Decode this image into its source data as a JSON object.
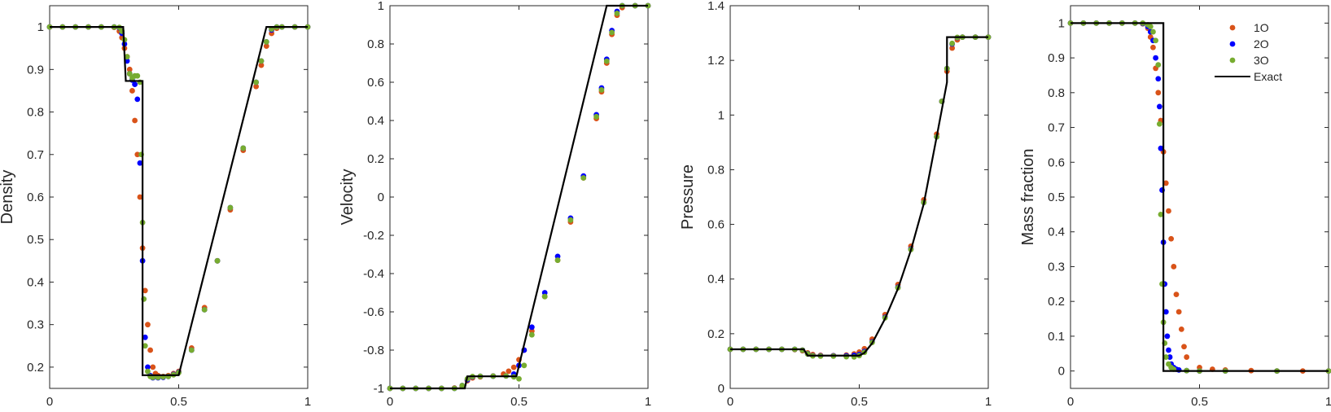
{
  "colors": {
    "o1": "#D95319",
    "o2": "#0000FF",
    "o3": "#77AC30",
    "exact": "#000000",
    "axis": "#262626"
  },
  "legend": {
    "entries": [
      "1O",
      "2O",
      "3O",
      "Exact"
    ],
    "placement": "top-right of fourth panel"
  },
  "chart_data": [
    {
      "type": "scatter",
      "title": "",
      "xlabel": "",
      "ylabel": "Density",
      "xlim": [
        0,
        1
      ],
      "ylim": [
        0.15,
        1.05
      ],
      "xticks": [
        "0",
        "0.5",
        "1"
      ],
      "yticks": [
        "0.2",
        "0.3",
        "0.4",
        "0.5",
        "0.6",
        "0.7",
        "0.8",
        "0.9",
        "1"
      ],
      "series": [
        {
          "name": "1O",
          "x": [
            0,
            0.05,
            0.1,
            0.15,
            0.2,
            0.25,
            0.27,
            0.28,
            0.29,
            0.3,
            0.31,
            0.32,
            0.33,
            0.34,
            0.35,
            0.36,
            0.37,
            0.38,
            0.39,
            0.4,
            0.41,
            0.42,
            0.44,
            0.46,
            0.48,
            0.5,
            0.55,
            0.6,
            0.65,
            0.7,
            0.75,
            0.8,
            0.82,
            0.84,
            0.86,
            0.88,
            0.9,
            0.95,
            1.0
          ],
          "y": [
            1,
            1,
            1,
            1,
            1,
            0.999,
            0.99,
            0.975,
            0.95,
            0.93,
            0.9,
            0.85,
            0.78,
            0.7,
            0.6,
            0.48,
            0.38,
            0.3,
            0.24,
            0.2,
            0.185,
            0.18,
            0.178,
            0.18,
            0.185,
            0.19,
            0.245,
            0.34,
            0.45,
            0.57,
            0.71,
            0.86,
            0.91,
            0.955,
            0.985,
            0.997,
            1,
            1,
            1
          ]
        },
        {
          "name": "2O",
          "x": [
            0,
            0.05,
            0.1,
            0.15,
            0.2,
            0.25,
            0.27,
            0.28,
            0.29,
            0.3,
            0.31,
            0.32,
            0.33,
            0.34,
            0.35,
            0.36,
            0.37,
            0.38,
            0.39,
            0.4,
            0.42,
            0.44,
            0.46,
            0.48,
            0.5,
            0.55,
            0.6,
            0.65,
            0.7,
            0.75,
            0.8,
            0.82,
            0.84,
            0.86,
            0.88,
            0.9,
            0.95,
            1.0
          ],
          "y": [
            1,
            1,
            1,
            1,
            1,
            1,
            0.998,
            0.985,
            0.96,
            0.92,
            0.89,
            0.875,
            0.865,
            0.83,
            0.68,
            0.45,
            0.27,
            0.2,
            0.18,
            0.175,
            0.175,
            0.176,
            0.178,
            0.183,
            0.188,
            0.24,
            0.335,
            0.45,
            0.575,
            0.715,
            0.87,
            0.92,
            0.965,
            0.993,
            1,
            1,
            1,
            1
          ]
        },
        {
          "name": "3O",
          "x": [
            0,
            0.05,
            0.1,
            0.15,
            0.2,
            0.25,
            0.27,
            0.28,
            0.29,
            0.3,
            0.31,
            0.32,
            0.33,
            0.34,
            0.35,
            0.355,
            0.36,
            0.365,
            0.37,
            0.38,
            0.39,
            0.4,
            0.42,
            0.44,
            0.46,
            0.48,
            0.5,
            0.55,
            0.6,
            0.65,
            0.7,
            0.75,
            0.8,
            0.82,
            0.84,
            0.86,
            0.88,
            0.9,
            0.95,
            1.0
          ],
          "y": [
            1,
            1,
            1,
            1,
            1,
            1,
            0.999,
            0.99,
            0.97,
            0.93,
            0.89,
            0.88,
            0.885,
            0.885,
            0.87,
            0.7,
            0.54,
            0.36,
            0.25,
            0.19,
            0.178,
            0.176,
            0.176,
            0.177,
            0.178,
            0.182,
            0.187,
            0.24,
            0.335,
            0.45,
            0.575,
            0.715,
            0.87,
            0.92,
            0.965,
            0.995,
            1,
            1,
            1,
            1
          ]
        },
        {
          "name": "Exact",
          "x": [
            0,
            0.285,
            0.295,
            0.36,
            0.36,
            0.5,
            0.84,
            1.0
          ],
          "y": [
            1,
            1,
            0.873,
            0.873,
            0.181,
            0.181,
            1,
            1
          ]
        }
      ]
    },
    {
      "type": "scatter",
      "title": "",
      "xlabel": "",
      "ylabel": "Velocity",
      "xlim": [
        0,
        1
      ],
      "ylim": [
        -1,
        1
      ],
      "xticks": [
        "0",
        "0.5",
        "1"
      ],
      "yticks": [
        "-1",
        "-0.8",
        "-0.6",
        "-0.4",
        "-0.2",
        "0",
        "0.2",
        "0.4",
        "0.6",
        "0.8",
        "1"
      ],
      "series": [
        {
          "name": "1O",
          "x": [
            0,
            0.05,
            0.1,
            0.15,
            0.2,
            0.25,
            0.28,
            0.3,
            0.32,
            0.35,
            0.4,
            0.44,
            0.46,
            0.48,
            0.5,
            0.52,
            0.55,
            0.6,
            0.65,
            0.7,
            0.75,
            0.8,
            0.82,
            0.84,
            0.86,
            0.88,
            0.9,
            0.95,
            1.0
          ],
          "y": [
            -1,
            -1,
            -1,
            -1,
            -1,
            -0.998,
            -0.99,
            -0.96,
            -0.945,
            -0.94,
            -0.935,
            -0.925,
            -0.91,
            -0.89,
            -0.85,
            -0.8,
            -0.7,
            -0.52,
            -0.33,
            -0.13,
            0.1,
            0.41,
            0.55,
            0.7,
            0.85,
            0.95,
            0.99,
            1,
            1
          ]
        },
        {
          "name": "2O",
          "x": [
            0,
            0.05,
            0.1,
            0.15,
            0.2,
            0.25,
            0.28,
            0.3,
            0.32,
            0.35,
            0.4,
            0.45,
            0.48,
            0.5,
            0.52,
            0.55,
            0.6,
            0.65,
            0.7,
            0.75,
            0.8,
            0.82,
            0.84,
            0.86,
            0.88,
            0.9,
            0.95,
            1.0
          ],
          "y": [
            -1,
            -1,
            -1,
            -1,
            -1,
            -1,
            -0.985,
            -0.955,
            -0.94,
            -0.937,
            -0.936,
            -0.935,
            -0.925,
            -0.88,
            -0.8,
            -0.68,
            -0.5,
            -0.31,
            -0.11,
            0.11,
            0.43,
            0.57,
            0.72,
            0.87,
            0.97,
            1,
            1,
            1
          ]
        },
        {
          "name": "3O",
          "x": [
            0,
            0.05,
            0.1,
            0.15,
            0.2,
            0.25,
            0.28,
            0.3,
            0.32,
            0.35,
            0.4,
            0.45,
            0.48,
            0.5,
            0.52,
            0.55,
            0.6,
            0.65,
            0.7,
            0.75,
            0.8,
            0.82,
            0.84,
            0.86,
            0.88,
            0.9,
            0.95,
            1.0
          ],
          "y": [
            -1,
            -1,
            -1,
            -1,
            -1,
            -1,
            -0.985,
            -0.95,
            -0.938,
            -0.937,
            -0.936,
            -0.935,
            -0.94,
            -0.95,
            -0.88,
            -0.72,
            -0.52,
            -0.33,
            -0.12,
            0.1,
            0.42,
            0.56,
            0.71,
            0.86,
            0.96,
            1,
            1,
            1
          ]
        },
        {
          "name": "Exact",
          "x": [
            0,
            0.29,
            0.3,
            0.49,
            0.84,
            1.0
          ],
          "y": [
            -1,
            -1,
            -0.937,
            -0.937,
            1,
            1
          ]
        }
      ]
    },
    {
      "type": "scatter",
      "title": "",
      "xlabel": "",
      "ylabel": "Pressure",
      "xlim": [
        0,
        1
      ],
      "ylim": [
        0,
        1.4
      ],
      "xticks": [
        "0",
        "0.5",
        "1"
      ],
      "yticks": [
        "0",
        "0.2",
        "0.4",
        "0.6",
        "0.8",
        "1",
        "1.2",
        "1.4"
      ],
      "series": [
        {
          "name": "1O",
          "x": [
            0,
            0.05,
            0.1,
            0.15,
            0.2,
            0.25,
            0.28,
            0.3,
            0.32,
            0.35,
            0.4,
            0.45,
            0.48,
            0.5,
            0.52,
            0.55,
            0.6,
            0.65,
            0.7,
            0.75,
            0.8,
            0.82,
            0.84,
            0.86,
            0.88,
            0.9,
            0.95,
            1.0
          ],
          "y": [
            0.143,
            0.143,
            0.143,
            0.143,
            0.143,
            0.142,
            0.138,
            0.13,
            0.124,
            0.121,
            0.12,
            0.122,
            0.126,
            0.133,
            0.145,
            0.18,
            0.27,
            0.38,
            0.52,
            0.69,
            0.93,
            1.05,
            1.16,
            1.245,
            1.275,
            1.285,
            1.285,
            1.285
          ]
        },
        {
          "name": "2O",
          "x": [
            0,
            0.05,
            0.1,
            0.15,
            0.2,
            0.25,
            0.28,
            0.3,
            0.32,
            0.35,
            0.4,
            0.45,
            0.48,
            0.5,
            0.52,
            0.55,
            0.6,
            0.65,
            0.7,
            0.75,
            0.8,
            0.82,
            0.84,
            0.86,
            0.88,
            0.9,
            0.95,
            1.0
          ],
          "y": [
            0.143,
            0.143,
            0.143,
            0.143,
            0.143,
            0.143,
            0.14,
            0.127,
            0.12,
            0.119,
            0.119,
            0.119,
            0.121,
            0.124,
            0.135,
            0.17,
            0.26,
            0.37,
            0.51,
            0.68,
            0.92,
            1.05,
            1.17,
            1.26,
            1.283,
            1.285,
            1.285,
            1.285
          ]
        },
        {
          "name": "3O",
          "x": [
            0,
            0.05,
            0.1,
            0.15,
            0.2,
            0.25,
            0.28,
            0.3,
            0.32,
            0.35,
            0.4,
            0.45,
            0.48,
            0.5,
            0.52,
            0.55,
            0.6,
            0.65,
            0.7,
            0.75,
            0.8,
            0.82,
            0.84,
            0.86,
            0.88,
            0.9,
            0.95,
            1.0
          ],
          "y": [
            0.143,
            0.143,
            0.143,
            0.143,
            0.143,
            0.143,
            0.14,
            0.126,
            0.119,
            0.118,
            0.118,
            0.116,
            0.115,
            0.12,
            0.132,
            0.168,
            0.258,
            0.368,
            0.508,
            0.68,
            0.92,
            1.05,
            1.17,
            1.262,
            1.284,
            1.285,
            1.285,
            1.285
          ]
        },
        {
          "name": "Exact",
          "x": [
            0,
            0.285,
            0.3,
            0.5,
            0.52,
            0.55,
            0.6,
            0.65,
            0.7,
            0.75,
            0.8,
            0.84,
            0.84,
            1.0
          ],
          "y": [
            0.143,
            0.143,
            0.12,
            0.12,
            0.13,
            0.165,
            0.255,
            0.365,
            0.505,
            0.675,
            0.92,
            1.12,
            1.285,
            1.285
          ]
        }
      ]
    },
    {
      "type": "scatter",
      "title": "",
      "xlabel": "",
      "ylabel": "Mass fraction",
      "xlim": [
        0,
        1
      ],
      "ylim": [
        -0.05,
        1.05
      ],
      "xticks": [
        "0",
        "0.5",
        "1"
      ],
      "yticks": [
        "0",
        "0.1",
        "0.2",
        "0.3",
        "0.4",
        "0.5",
        "0.6",
        "0.7",
        "0.8",
        "0.9",
        "1"
      ],
      "series": [
        {
          "name": "1O",
          "x": [
            0,
            0.05,
            0.1,
            0.15,
            0.2,
            0.25,
            0.28,
            0.3,
            0.31,
            0.32,
            0.33,
            0.34,
            0.35,
            0.36,
            0.37,
            0.38,
            0.39,
            0.4,
            0.41,
            0.42,
            0.43,
            0.44,
            0.45,
            0.5,
            0.55,
            0.6,
            0.7,
            0.8,
            0.9,
            1.0
          ],
          "y": [
            1,
            1,
            1,
            1,
            1,
            1,
            0.998,
            0.985,
            0.96,
            0.93,
            0.87,
            0.8,
            0.72,
            0.63,
            0.54,
            0.46,
            0.38,
            0.3,
            0.22,
            0.17,
            0.12,
            0.07,
            0.04,
            0.01,
            0.005,
            0.003,
            0.001,
            0,
            0,
            0
          ]
        },
        {
          "name": "2O",
          "x": [
            0,
            0.05,
            0.1,
            0.15,
            0.2,
            0.25,
            0.28,
            0.3,
            0.31,
            0.32,
            0.33,
            0.34,
            0.345,
            0.35,
            0.355,
            0.36,
            0.365,
            0.37,
            0.375,
            0.38,
            0.385,
            0.39,
            0.4,
            0.41,
            0.42,
            0.45,
            0.5,
            0.6,
            0.8,
            1.0
          ],
          "y": [
            1,
            1,
            1,
            1,
            1,
            1,
            0.999,
            0.99,
            0.975,
            0.95,
            0.9,
            0.84,
            0.76,
            0.64,
            0.52,
            0.37,
            0.25,
            0.17,
            0.1,
            0.06,
            0.04,
            0.02,
            0.01,
            0.005,
            0.003,
            0.001,
            0,
            0,
            0,
            0
          ]
        },
        {
          "name": "3O",
          "x": [
            0,
            0.05,
            0.1,
            0.15,
            0.2,
            0.25,
            0.28,
            0.3,
            0.31,
            0.32,
            0.33,
            0.34,
            0.345,
            0.35,
            0.355,
            0.36,
            0.365,
            0.37,
            0.38,
            0.39,
            0.4,
            0.45,
            0.5,
            0.6,
            0.8,
            1.0
          ],
          "y": [
            1,
            1,
            1,
            1,
            1,
            1,
            1,
            0.995,
            0.99,
            0.975,
            0.95,
            0.88,
            0.71,
            0.45,
            0.25,
            0.14,
            0.08,
            0.04,
            0.02,
            0.01,
            0.005,
            0.001,
            0,
            0,
            0,
            0
          ]
        },
        {
          "name": "Exact",
          "x": [
            0,
            0.36,
            0.36,
            1.0
          ],
          "y": [
            1,
            1,
            0,
            0
          ]
        }
      ]
    }
  ]
}
